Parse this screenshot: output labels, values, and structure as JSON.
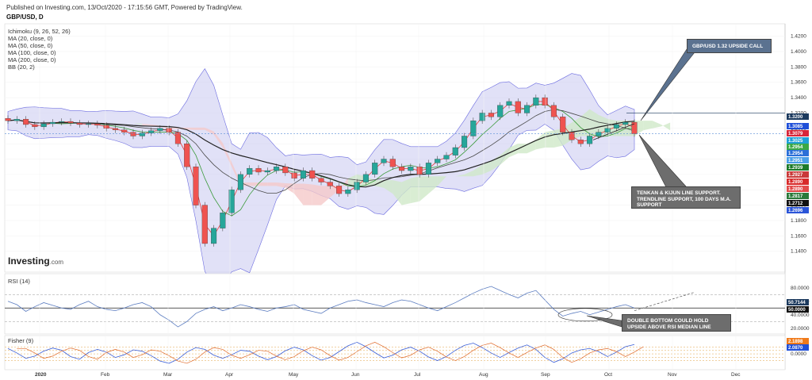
{
  "header": {
    "published": "Published on Investing.com, 13/Oct/2020 - 17:15:56 GMT, Powered by TradingView.",
    "symbol": "GBP/USD, D"
  },
  "indicators": [
    "Ichimoku (9, 26, 52, 26)",
    "MA (20, close, 0)",
    "MA (50, close, 0)",
    "MA (100, close, 0)",
    "MA (200, close, 0)",
    "BB (20, 2)"
  ],
  "logo": {
    "main": "Investing",
    "suffix": ".com"
  },
  "annotations": {
    "upside_call": "GBP/USD 1.32 UPSIDE CALL",
    "support_note": "TENKAN & KIJUN LINE SUPPORT. TRENDLINE SUPPORT, 100 DAYS M.A. SUPPORT",
    "rsi_note": "DOUBLE BOTTOM COULD HOLD UPSIDE ABOVE RSI MEDIAN LINE"
  },
  "colors": {
    "up_candle": "#26a69a",
    "down_candle": "#ef5350",
    "bb_fill": "#c9c8f0",
    "cloud_green": "#cfe8c8",
    "cloud_red": "#f5c9c9",
    "annotation_box": "#5b7290",
    "annotation_box_dark": "#6d6d6d"
  },
  "chart_data": [
    {
      "type": "candlestick",
      "name": "price",
      "ylim": [
        1.12,
        1.43
      ],
      "y_ticks": [
        "1.4200",
        "1.4000",
        "1.3800",
        "1.3600",
        "1.3400",
        "1.3200",
        "1.3000",
        "1.2800",
        "1.2600",
        "1.2400",
        "1.2200",
        "1.2000",
        "1.1800",
        "1.1600",
        "1.1400"
      ],
      "x_ticks": [
        "2020",
        "Feb",
        "Mar",
        "Apr",
        "May",
        "Jun",
        "Jul",
        "Aug",
        "Sep",
        "Oct",
        "Nov",
        "Dec"
      ],
      "price_tags": [
        {
          "label": "1.3200",
          "color": "#1c3a5e"
        },
        {
          "label": "1.3085",
          "color": "#1f4fd8"
        },
        {
          "label": "1.3079",
          "color": "#d8263a"
        },
        {
          "label": "1.3025",
          "color": "#1f9fd8"
        },
        {
          "label": "1.2954",
          "color": "#3aa845"
        },
        {
          "label": "1.2954",
          "color": "#2b6fd8"
        },
        {
          "label": "1.2951",
          "color": "#4a9fe8"
        },
        {
          "label": "1.2939",
          "color": "#1c7a2a"
        },
        {
          "label": "1.2927",
          "color": "#c93a3a"
        },
        {
          "label": "1.2890",
          "color": "#d82a2a"
        },
        {
          "label": "1.2890",
          "color": "#e24a4a"
        },
        {
          "label": "1.2817",
          "color": "#2a7a3a"
        },
        {
          "label": "1.2712",
          "color": "#111111"
        },
        {
          "label": "1.2696",
          "color": "#2b55d8"
        }
      ],
      "close_series": [
        1.31,
        1.312,
        1.305,
        1.302,
        1.306,
        1.308,
        1.309,
        1.307,
        1.305,
        1.306,
        1.304,
        1.3,
        1.298,
        1.295,
        1.29,
        1.294,
        1.297,
        1.3,
        1.295,
        1.28,
        1.25,
        1.2,
        1.15,
        1.17,
        1.19,
        1.22,
        1.24,
        1.248,
        1.243,
        1.245,
        1.25,
        1.242,
        1.235,
        1.245,
        1.235,
        1.23,
        1.225,
        1.215,
        1.22,
        1.23,
        1.24,
        1.255,
        1.26,
        1.25,
        1.245,
        1.25,
        1.24,
        1.255,
        1.26,
        1.265,
        1.275,
        1.29,
        1.31,
        1.32,
        1.315,
        1.33,
        1.335,
        1.32,
        1.33,
        1.34,
        1.33,
        1.315,
        1.295,
        1.285,
        1.28,
        1.29,
        1.295,
        1.3,
        1.305,
        1.308,
        1.293
      ],
      "current_price": 1.293
    },
    {
      "type": "line",
      "name": "RSI (14)",
      "ylim": [
        15,
        95
      ],
      "y_ticks": [
        "80.0000",
        "60.0000",
        "40.0000",
        "20.0000"
      ],
      "price_tags": [
        {
          "label": "50.7144",
          "color": "#1c3a5e"
        },
        {
          "label": "50.0000",
          "color": "#111111"
        }
      ],
      "median": 50,
      "values": [
        60,
        55,
        45,
        52,
        58,
        54,
        50,
        48,
        55,
        60,
        52,
        48,
        46,
        50,
        55,
        58,
        52,
        40,
        32,
        22,
        30,
        42,
        48,
        52,
        46,
        50,
        55,
        52,
        48,
        45,
        50,
        52,
        55,
        48,
        45,
        42,
        50,
        55,
        60,
        62,
        58,
        55,
        52,
        58,
        62,
        60,
        55,
        50,
        46,
        52,
        58,
        65,
        72,
        78,
        82,
        76,
        70,
        65,
        72,
        76,
        62,
        48,
        38,
        42,
        45,
        40,
        44,
        48,
        52,
        55,
        50
      ]
    },
    {
      "type": "line",
      "name": "Fisher (9)",
      "ylim": [
        -3,
        3.2
      ],
      "y_ticks": [
        "0.0000"
      ],
      "price_tags": [
        {
          "label": "2.1898",
          "color": "#f07a1a"
        },
        {
          "label": "2.0870",
          "color": "#1f4fd8"
        }
      ],
      "values": [
        1.2,
        0.2,
        -1.0,
        -0.5,
        0.6,
        1.3,
        0.8,
        -0.6,
        -1.2,
        0.3,
        1.0,
        0.4,
        -0.8,
        -0.2,
        0.9,
        0.6,
        -0.4,
        -1.6,
        -2.1,
        -1.2,
        0.4,
        1.4,
        1.0,
        -0.3,
        -1.0,
        -0.2,
        0.8,
        0.6,
        -0.5,
        -1.3,
        -0.6,
        0.7,
        1.5,
        0.9,
        -0.4,
        -1.4,
        -0.8,
        0.5,
        1.8,
        2.6,
        1.6,
        0.3,
        -0.9,
        -0.3,
        0.9,
        1.5,
        0.6,
        -0.7,
        -1.5,
        -0.6,
        0.8,
        1.9,
        2.4,
        1.4,
        0.2,
        -0.8,
        0.3,
        1.3,
        2.0,
        1.0,
        -0.8,
        -1.9,
        -1.1,
        0.2,
        0.9,
        1.2,
        0.5,
        -0.6,
        0.4,
        1.6,
        2.1
      ]
    }
  ]
}
